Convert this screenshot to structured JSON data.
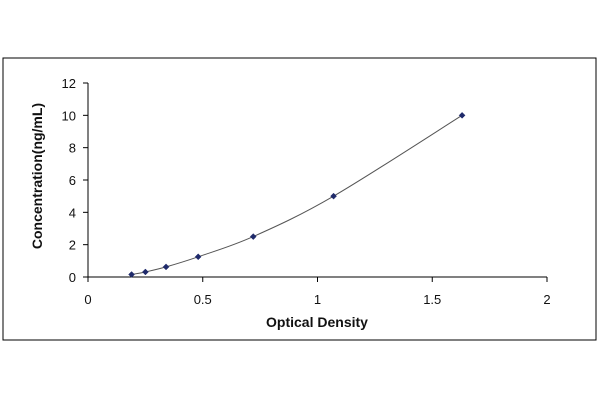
{
  "chart_data": {
    "type": "scatter",
    "title": "",
    "xlabel": "Optical Density",
    "ylabel": "Concentration(ng/mL)",
    "xlim": [
      0,
      2
    ],
    "ylim": [
      0,
      12
    ],
    "x_ticks": [
      0,
      0.5,
      1,
      1.5,
      2
    ],
    "x_tick_labels": [
      "0",
      "0.5",
      "1",
      "1.5",
      "2"
    ],
    "y_ticks": [
      0,
      2,
      4,
      6,
      8,
      10,
      12
    ],
    "y_tick_labels": [
      "0",
      "2",
      "4",
      "6",
      "8",
      "10",
      "12"
    ],
    "grid": false,
    "legend": "none",
    "series": [
      {
        "x": [
          0.19,
          0.25,
          0.34,
          0.48,
          0.72,
          1.07,
          1.63
        ],
        "y": [
          0.156,
          0.312,
          0.625,
          1.25,
          2.5,
          5,
          10
        ],
        "marker": "diamond",
        "fit": "curve"
      }
    ],
    "colors": {
      "marker": "#1f2a6b",
      "curve": "#555555",
      "axis": "#000000",
      "frame": "#000000"
    }
  }
}
